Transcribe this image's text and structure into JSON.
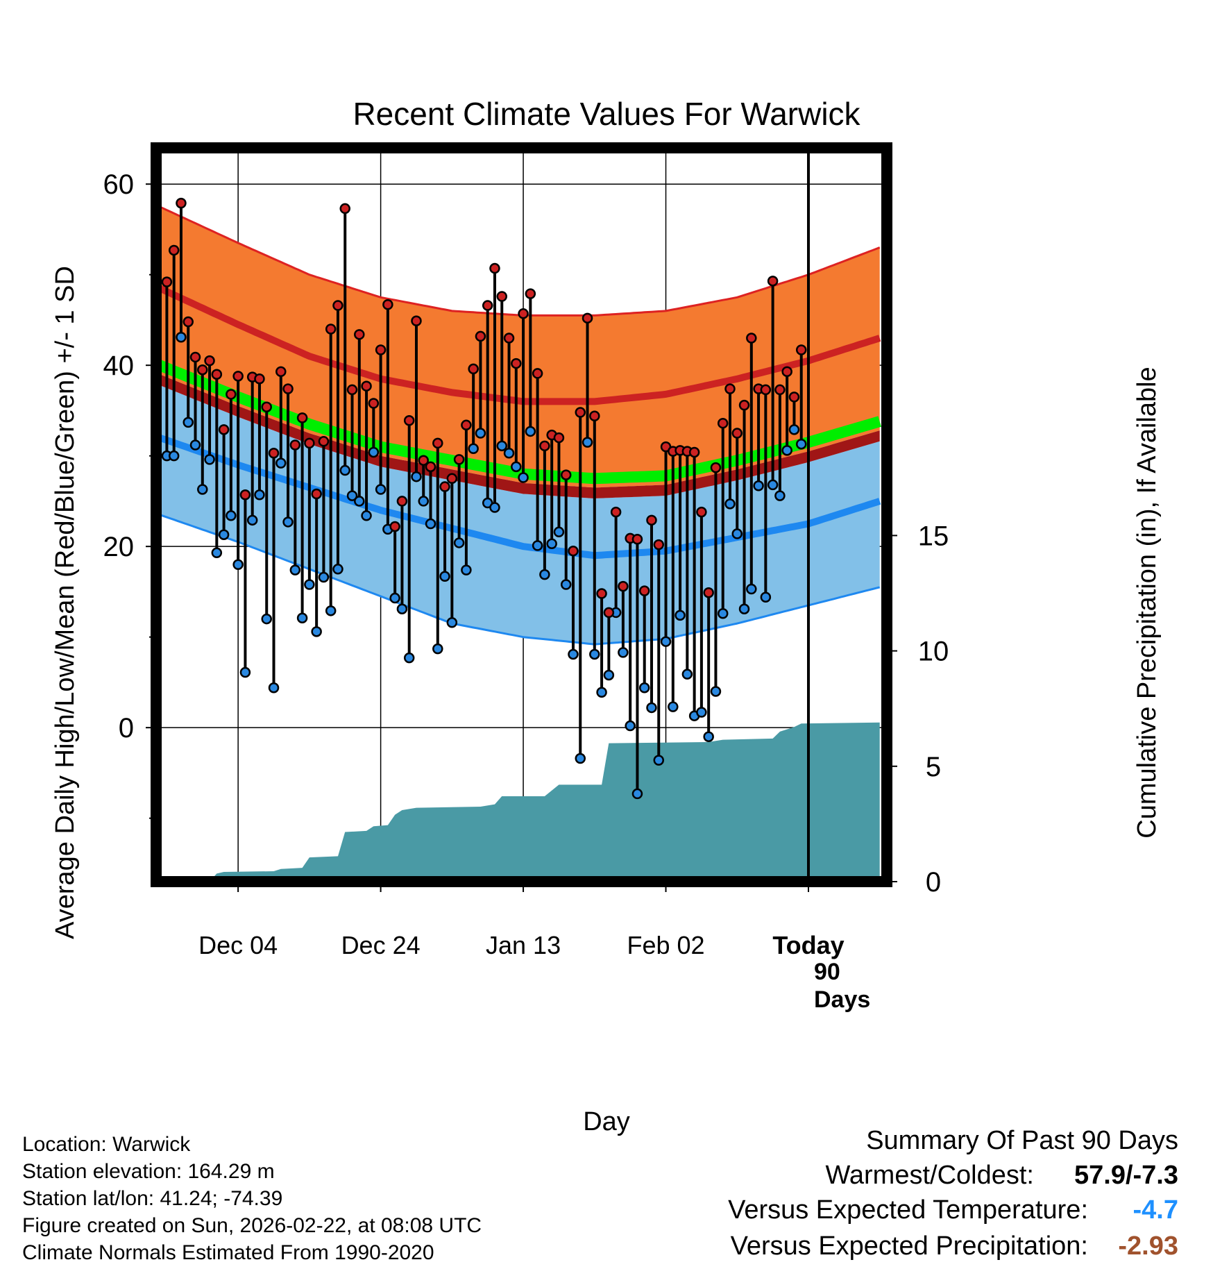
{
  "chart_data": {
    "type": "line",
    "title": "Recent Climate Values For Warwick",
    "xlabel": "Day",
    "ylabel": "Average Daily High/Low/Mean (Red/Blue/Green) +/- 1 SD",
    "y2label": "Cumulative Precipitation (in), If Available",
    "ylim": [
      -17,
      64
    ],
    "y2lim": [
      0,
      31.8
    ],
    "xlim": [
      -1.5,
      101
    ],
    "x_ticks": [
      {
        "day": 10,
        "label": "Dec 04"
      },
      {
        "day": 30,
        "label": "Dec 24"
      },
      {
        "day": 50,
        "label": "Jan 13"
      },
      {
        "day": 70,
        "label": "Feb 02"
      },
      {
        "day": 90,
        "label": "Today"
      }
    ],
    "y_ticks": [
      0,
      20,
      40,
      60
    ],
    "y_minor_ticks": [
      -10,
      10,
      30,
      50
    ],
    "y2_ticks": [
      0,
      5,
      10,
      15
    ],
    "today_day": 90,
    "today_label": [
      "90",
      "Days"
    ],
    "normal_high": [
      {
        "day": -1,
        "mean": 48.5,
        "sd_upper": 57.5
      },
      {
        "day": 10,
        "mean": 44.5,
        "sd_upper": 53.5
      },
      {
        "day": 20,
        "mean": 41.0,
        "sd_upper": 50.0
      },
      {
        "day": 30,
        "mean": 38.5,
        "sd_upper": 47.5
      },
      {
        "day": 40,
        "mean": 37.0,
        "sd_upper": 46.0
      },
      {
        "day": 50,
        "mean": 36.0,
        "sd_upper": 45.5
      },
      {
        "day": 60,
        "mean": 36.0,
        "sd_upper": 45.5
      },
      {
        "day": 70,
        "mean": 36.8,
        "sd_upper": 46.0
      },
      {
        "day": 80,
        "mean": 38.5,
        "sd_upper": 47.5
      },
      {
        "day": 90,
        "mean": 40.5,
        "sd_upper": 50.0
      },
      {
        "day": 100,
        "mean": 43.0,
        "sd_upper": 53.0
      }
    ],
    "normal_low": [
      {
        "day": -1,
        "mean": 32.0,
        "sd_lower": 23.5
      },
      {
        "day": 10,
        "mean": 29.0,
        "sd_lower": 20.5
      },
      {
        "day": 20,
        "mean": 26.5,
        "sd_lower": 17.5
      },
      {
        "day": 30,
        "mean": 24.0,
        "sd_lower": 14.5
      },
      {
        "day": 40,
        "mean": 22.0,
        "sd_lower": 11.5
      },
      {
        "day": 50,
        "mean": 20.0,
        "sd_lower": 10.0
      },
      {
        "day": 60,
        "mean": 19.0,
        "sd_lower": 9.2
      },
      {
        "day": 70,
        "mean": 19.5,
        "sd_lower": 9.8
      },
      {
        "day": 80,
        "mean": 21.0,
        "sd_lower": 11.5
      },
      {
        "day": 90,
        "mean": 22.5,
        "sd_lower": 13.5
      },
      {
        "day": 100,
        "mean": 25.0,
        "sd_lower": 15.5
      }
    ],
    "normal_mean": [
      {
        "day": -1,
        "value": 40.0
      },
      {
        "day": 10,
        "value": 36.5
      },
      {
        "day": 20,
        "value": 33.5
      },
      {
        "day": 30,
        "value": 31.0
      },
      {
        "day": 40,
        "value": 29.5
      },
      {
        "day": 50,
        "value": 28.0
      },
      {
        "day": 60,
        "value": 27.5
      },
      {
        "day": 70,
        "value": 27.8
      },
      {
        "day": 80,
        "value": 29.5
      },
      {
        "day": 90,
        "value": 31.5
      },
      {
        "day": 100,
        "value": 33.8
      }
    ],
    "daily_high": [
      49.2,
      52.7,
      57.9,
      44.8,
      40.9,
      39.5,
      40.5,
      39.0,
      32.9,
      36.8,
      38.8,
      25.7,
      38.7,
      38.5,
      35.4,
      30.3,
      39.3,
      37.4,
      31.2,
      34.2,
      31.4,
      25.8,
      31.6,
      44.0,
      46.6,
      57.3,
      37.3,
      43.4,
      37.7,
      35.8,
      41.7,
      46.7,
      22.2,
      25.0,
      33.9,
      44.9,
      29.5,
      28.8,
      31.4,
      26.6,
      27.5,
      29.6,
      33.4,
      39.6,
      43.2,
      46.6,
      50.7,
      47.6,
      43.0,
      40.2,
      45.7,
      47.9,
      39.1,
      31.1,
      32.3,
      32.0,
      27.9,
      19.5,
      34.8,
      45.2,
      34.4,
      14.8,
      12.7,
      23.8,
      15.6,
      20.9,
      20.8,
      15.1,
      22.9,
      20.2,
      31.0,
      30.5,
      30.6,
      30.5,
      30.4,
      23.8,
      14.9,
      28.7,
      33.6,
      37.4,
      32.5,
      35.6,
      43.0,
      37.4,
      37.3,
      49.3,
      37.3,
      39.3,
      36.5,
      41.7
    ],
    "daily_low": [
      30.0,
      30.0,
      43.1,
      33.7,
      31.2,
      26.3,
      29.6,
      19.3,
      21.3,
      23.4,
      18.0,
      6.1,
      22.9,
      25.7,
      12.0,
      4.4,
      29.2,
      22.7,
      17.4,
      12.1,
      15.8,
      10.6,
      16.6,
      12.9,
      17.5,
      28.4,
      25.6,
      25.0,
      23.4,
      30.4,
      26.3,
      21.9,
      14.3,
      13.1,
      7.7,
      27.7,
      25.0,
      22.5,
      8.7,
      16.7,
      11.6,
      20.4,
      17.4,
      30.8,
      32.5,
      24.8,
      24.3,
      31.1,
      30.3,
      28.8,
      27.6,
      32.7,
      20.1,
      16.9,
      20.3,
      21.6,
      15.8,
      8.1,
      -3.4,
      31.5,
      8.1,
      3.9,
      5.8,
      12.7,
      8.3,
      0.2,
      -7.3,
      4.4,
      2.2,
      -3.6,
      9.5,
      2.3,
      12.4,
      5.9,
      1.3,
      1.7,
      -1.0,
      4.0,
      12.6,
      24.7,
      21.4,
      13.1,
      15.3,
      26.7,
      14.4,
      26.8,
      25.6,
      30.6,
      32.9,
      31.3
    ],
    "cumulative_precip": [
      {
        "day": -1,
        "value": 0.0
      },
      {
        "day": 6,
        "value": 0.0
      },
      {
        "day": 7,
        "value": 0.35
      },
      {
        "day": 8,
        "value": 0.42
      },
      {
        "day": 15,
        "value": 0.45
      },
      {
        "day": 16,
        "value": 0.55
      },
      {
        "day": 19,
        "value": 0.6
      },
      {
        "day": 20,
        "value": 1.05
      },
      {
        "day": 24,
        "value": 1.1
      },
      {
        "day": 25,
        "value": 2.15
      },
      {
        "day": 28,
        "value": 2.2
      },
      {
        "day": 29,
        "value": 2.4
      },
      {
        "day": 31,
        "value": 2.45
      },
      {
        "day": 32,
        "value": 2.9
      },
      {
        "day": 33,
        "value": 3.1
      },
      {
        "day": 35,
        "value": 3.2
      },
      {
        "day": 44,
        "value": 3.25
      },
      {
        "day": 46,
        "value": 3.35
      },
      {
        "day": 47,
        "value": 3.7
      },
      {
        "day": 53,
        "value": 3.7
      },
      {
        "day": 55,
        "value": 4.2
      },
      {
        "day": 61,
        "value": 4.2
      },
      {
        "day": 62,
        "value": 6.0
      },
      {
        "day": 76,
        "value": 6.05
      },
      {
        "day": 78,
        "value": 6.15
      },
      {
        "day": 85,
        "value": 6.2
      },
      {
        "day": 86,
        "value": 6.5
      },
      {
        "day": 88,
        "value": 6.7
      },
      {
        "day": 89,
        "value": 6.85
      },
      {
        "day": 100,
        "value": 6.9
      }
    ]
  },
  "info": {
    "location": "Location: Warwick",
    "elevation": "Station elevation: 164.29 m",
    "latlon": "Station lat/lon: 41.24; -74.39",
    "created": "Figure created on Sun, 2026-02-22, at 08:08 UTC",
    "normals": "Climate Normals Estimated From 1990-2020"
  },
  "summary": {
    "title": "Summary Of Past 90 Days",
    "warmest_label": "Warmest/Coldest:",
    "warmest_value": "57.9/-7.3",
    "temp_label": "Versus Expected Temperature:",
    "temp_value": "-4.7",
    "temp_color": "#1e90ff",
    "precip_label": "Versus Expected Precipitation:",
    "precip_value": "-2.93",
    "precip_color": "#a0522d"
  },
  "colors": {
    "high_band": "#f47a30",
    "high_line": "#cc2222",
    "high_edge": "#dd2222",
    "overlap": "#a01616",
    "mean_line": "#00ee00",
    "low_band": "#82c0e8",
    "low_line": "#1e88f0",
    "low_edge": "#1e88f0",
    "precip": "#4a9aa5",
    "high_dot": "#cc2222",
    "low_dot": "#2a88e0"
  }
}
